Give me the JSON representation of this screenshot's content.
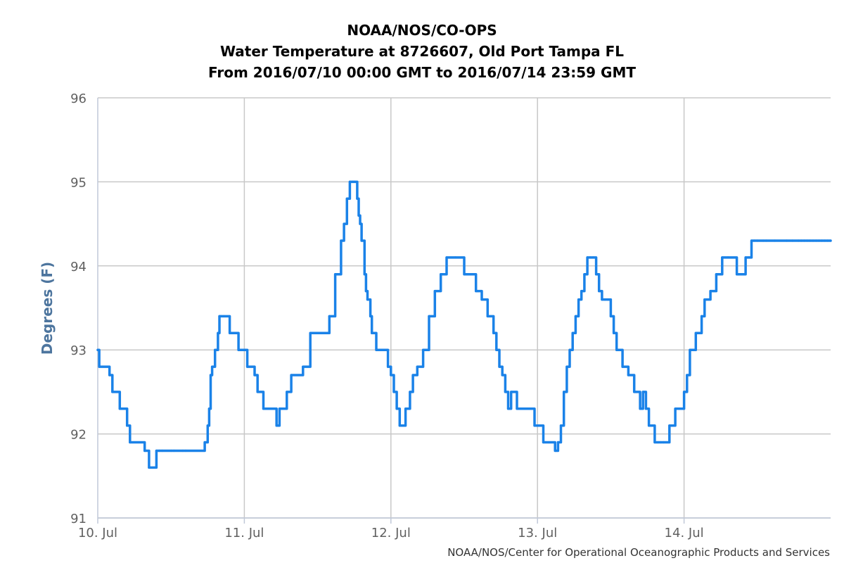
{
  "chart_data": {
    "type": "line",
    "title": [
      "NOAA/NOS/CO-OPS",
      "Water Temperature at 8726607, Old Port Tampa FL",
      "From 2016/07/10 00:00 GMT to 2016/07/14 23:59 GMT"
    ],
    "xlabel": "",
    "ylabel": "Degrees (F)",
    "xlim": [
      0,
      5
    ],
    "ylim": [
      91,
      96
    ],
    "yticks": [
      91,
      92,
      93,
      94,
      95,
      96
    ],
    "xticks": [
      {
        "value": 0,
        "label": "10. Jul"
      },
      {
        "value": 1,
        "label": "11. Jul"
      },
      {
        "value": 2,
        "label": "12. Jul"
      },
      {
        "value": 3,
        "label": "13. Jul"
      },
      {
        "value": 4,
        "label": "14. Jul"
      }
    ],
    "grid": true,
    "credits": "NOAA/NOS/Center for Operational Oceanographic Products and Services",
    "series_color": "#1a82e8",
    "series": [
      {
        "name": "Water Temperature",
        "x_unit": "days since 2016/07/10 00:00 GMT",
        "x": [
          0.0,
          0.01,
          0.08,
          0.1,
          0.15,
          0.2,
          0.22,
          0.32,
          0.35,
          0.4,
          0.42,
          0.44,
          0.5,
          0.52,
          0.58,
          0.6,
          0.73,
          0.75,
          0.76,
          0.77,
          0.78,
          0.8,
          0.82,
          0.83,
          0.84,
          0.86,
          0.9,
          0.96,
          1.0,
          1.02,
          1.07,
          1.09,
          1.13,
          1.22,
          1.24,
          1.29,
          1.32,
          1.4,
          1.45,
          1.58,
          1.62,
          1.66,
          1.68,
          1.7,
          1.72,
          1.74,
          1.75,
          1.77,
          1.78,
          1.79,
          1.8,
          1.82,
          1.83,
          1.84,
          1.86,
          1.87,
          1.9,
          1.98,
          2.0,
          2.02,
          2.04,
          2.06,
          2.1,
          2.13,
          2.15,
          2.18,
          2.22,
          2.26,
          2.3,
          2.34,
          2.38,
          2.44,
          2.5,
          2.58,
          2.62,
          2.66,
          2.7,
          2.72,
          2.74,
          2.76,
          2.78,
          2.8,
          2.82,
          2.86,
          2.94,
          2.98,
          3.04,
          3.08,
          3.12,
          3.14,
          3.16,
          3.18,
          3.2,
          3.22,
          3.24,
          3.26,
          3.28,
          3.3,
          3.32,
          3.34,
          3.36,
          3.38,
          3.4,
          3.42,
          3.44,
          3.46,
          3.48,
          3.5,
          3.52,
          3.54,
          3.56,
          3.58,
          3.62,
          3.66,
          3.7,
          3.72,
          3.74,
          3.76,
          3.78,
          3.8,
          3.82,
          3.84,
          3.86,
          3.9,
          3.94,
          4.0,
          4.02,
          4.04,
          4.08,
          4.12,
          4.14,
          4.18,
          4.22,
          4.26,
          4.3,
          4.36,
          4.4,
          4.42,
          4.44,
          4.46,
          4.48,
          4.5,
          4.54,
          4.56,
          4.62,
          4.7,
          4.74,
          4.78,
          4.8,
          4.82,
          4.84,
          4.86,
          4.88,
          4.9,
          4.92,
          4.94,
          4.96,
          4.98,
          5.0
        ],
        "y": [
          93.0,
          92.8,
          92.7,
          92.5,
          92.3,
          92.1,
          91.9,
          91.8,
          91.6,
          91.8,
          91.8,
          91.8,
          91.8,
          91.8,
          91.8,
          91.8,
          91.9,
          92.1,
          92.3,
          92.7,
          92.8,
          93.0,
          93.2,
          93.4,
          93.4,
          93.4,
          93.2,
          93.0,
          93.0,
          92.8,
          92.7,
          92.5,
          92.3,
          92.1,
          92.3,
          92.5,
          92.7,
          92.8,
          93.2,
          93.4,
          93.9,
          94.3,
          94.5,
          94.8,
          95.0,
          95.0,
          95.0,
          94.8,
          94.6,
          94.5,
          94.3,
          93.9,
          93.7,
          93.6,
          93.4,
          93.2,
          93.0,
          92.8,
          92.7,
          92.5,
          92.3,
          92.1,
          92.3,
          92.5,
          92.7,
          92.8,
          93.0,
          93.4,
          93.7,
          93.9,
          94.1,
          94.1,
          93.9,
          93.7,
          93.6,
          93.4,
          93.2,
          93.0,
          92.8,
          92.7,
          92.5,
          92.3,
          92.5,
          92.3,
          92.3,
          92.1,
          91.9,
          91.9,
          91.8,
          91.9,
          92.1,
          92.5,
          92.8,
          93.0,
          93.2,
          93.4,
          93.6,
          93.7,
          93.9,
          94.1,
          94.1,
          94.1,
          93.9,
          93.7,
          93.6,
          93.6,
          93.6,
          93.4,
          93.2,
          93.0,
          93.0,
          92.8,
          92.7,
          92.5,
          92.3,
          92.5,
          92.3,
          92.1,
          92.1,
          91.9,
          91.9,
          91.9,
          91.9,
          92.1,
          92.3,
          92.5,
          92.7,
          93.0,
          93.2,
          93.4,
          93.6,
          93.7,
          93.9,
          94.1,
          94.1,
          93.9,
          93.9,
          94.1,
          94.1,
          94.3,
          94.3,
          94.3,
          94.3,
          94.3,
          94.3,
          94.3,
          94.3,
          94.3,
          94.3,
          94.3,
          94.3,
          94.3,
          94.3,
          94.3,
          94.3,
          94.3,
          94.3,
          94.3,
          94.3
        ]
      }
    ]
  }
}
